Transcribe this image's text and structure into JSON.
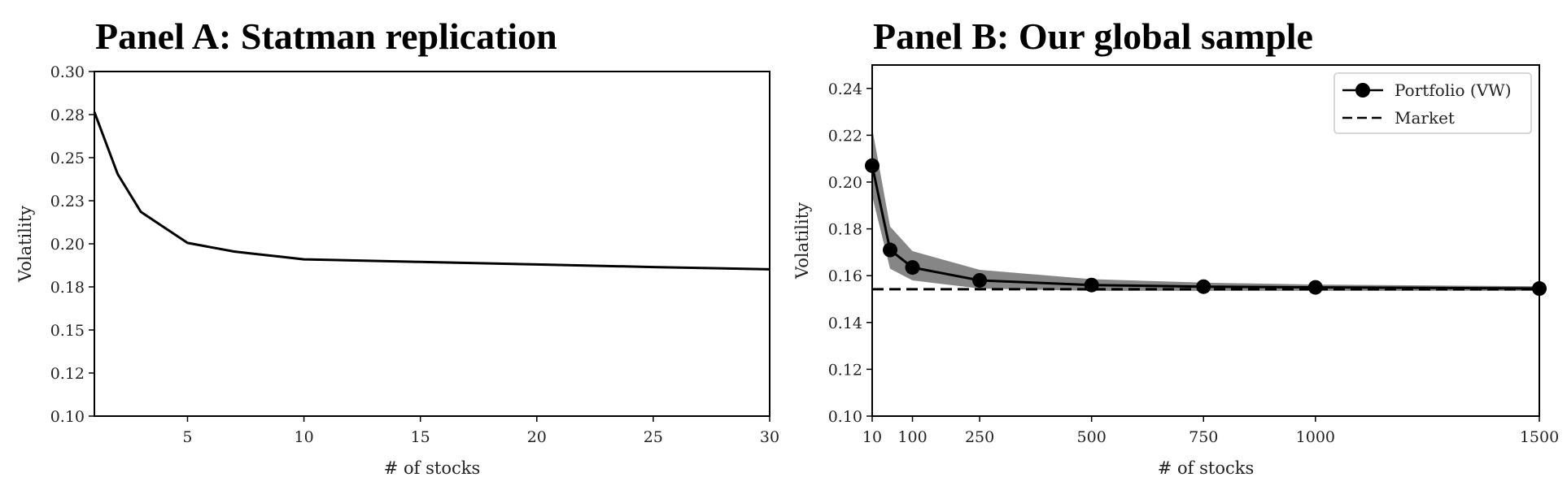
{
  "chart_data": [
    {
      "type": "line",
      "title": "Panel A: Statman replication",
      "xlabel": "# of stocks",
      "ylabel": "Volatility",
      "xlim": [
        1,
        30
      ],
      "ylim": [
        0.1,
        0.3
      ],
      "xticks": [
        5,
        10,
        15,
        20,
        25,
        30
      ],
      "xtick_labels": [
        "5",
        "10",
        "15",
        "20",
        "25",
        "30"
      ],
      "yticks": [
        0.1,
        0.125,
        0.15,
        0.175,
        0.2,
        0.225,
        0.25,
        0.275,
        0.3
      ],
      "ytick_labels": [
        "0.10",
        "0.12",
        "0.15",
        "0.18",
        "0.20",
        "0.23",
        "0.25",
        "0.28",
        "0.30"
      ],
      "grid": false,
      "legend": "none",
      "series": [
        {
          "style": "solid",
          "color": "#000000",
          "x": [
            1,
            2,
            3,
            4,
            5,
            6,
            7,
            8,
            9,
            10,
            15,
            20,
            25,
            30
          ],
          "y": [
            0.2765,
            0.2405,
            0.2185,
            0.2095,
            0.2005,
            0.198,
            0.1955,
            0.194,
            0.1925,
            0.191,
            0.1895,
            0.188,
            0.1865,
            0.1852
          ]
        }
      ]
    },
    {
      "type": "line",
      "title": "Panel B: Our global sample",
      "xlabel": "# of stocks",
      "ylabel": "Volatility",
      "xlim": [
        10,
        1500
      ],
      "ylim": [
        0.1,
        0.25
      ],
      "xticks": [
        10,
        100,
        250,
        500,
        750,
        1000,
        1500
      ],
      "xtick_labels": [
        "10",
        "100",
        "250",
        "500",
        "750",
        "1000",
        "1500"
      ],
      "extra_xtick_labels": [
        {
          "x": 50,
          "label": ""
        }
      ],
      "yticks": [
        0.1,
        0.12,
        0.14,
        0.16,
        0.18,
        0.2,
        0.22,
        0.24
      ],
      "ytick_labels": [
        "0.10",
        "0.12",
        "0.14",
        "0.16",
        "0.18",
        "0.20",
        "0.22",
        "0.24"
      ],
      "grid": false,
      "legend": "top-right",
      "series": [
        {
          "name": "Portfolio (VW)",
          "style": "solid-markers",
          "color": "#000000",
          "x": [
            10,
            50,
            100,
            250,
            500,
            750,
            1000,
            1500
          ],
          "y": [
            0.207,
            0.171,
            0.1635,
            0.158,
            0.156,
            0.1553,
            0.155,
            0.1545
          ],
          "band_lower": [
            0.194,
            0.163,
            0.158,
            0.1545,
            0.1535,
            0.1535,
            0.1535,
            0.1535
          ],
          "band_upper": [
            0.223,
            0.181,
            0.1705,
            0.1625,
            0.1585,
            0.157,
            0.1562,
            0.1555
          ],
          "band_color": "#7f7f7f"
        },
        {
          "name": "Market",
          "style": "dashed",
          "color": "#000000",
          "x": [
            10,
            1500
          ],
          "y": [
            0.1542,
            0.1542
          ]
        }
      ]
    }
  ]
}
